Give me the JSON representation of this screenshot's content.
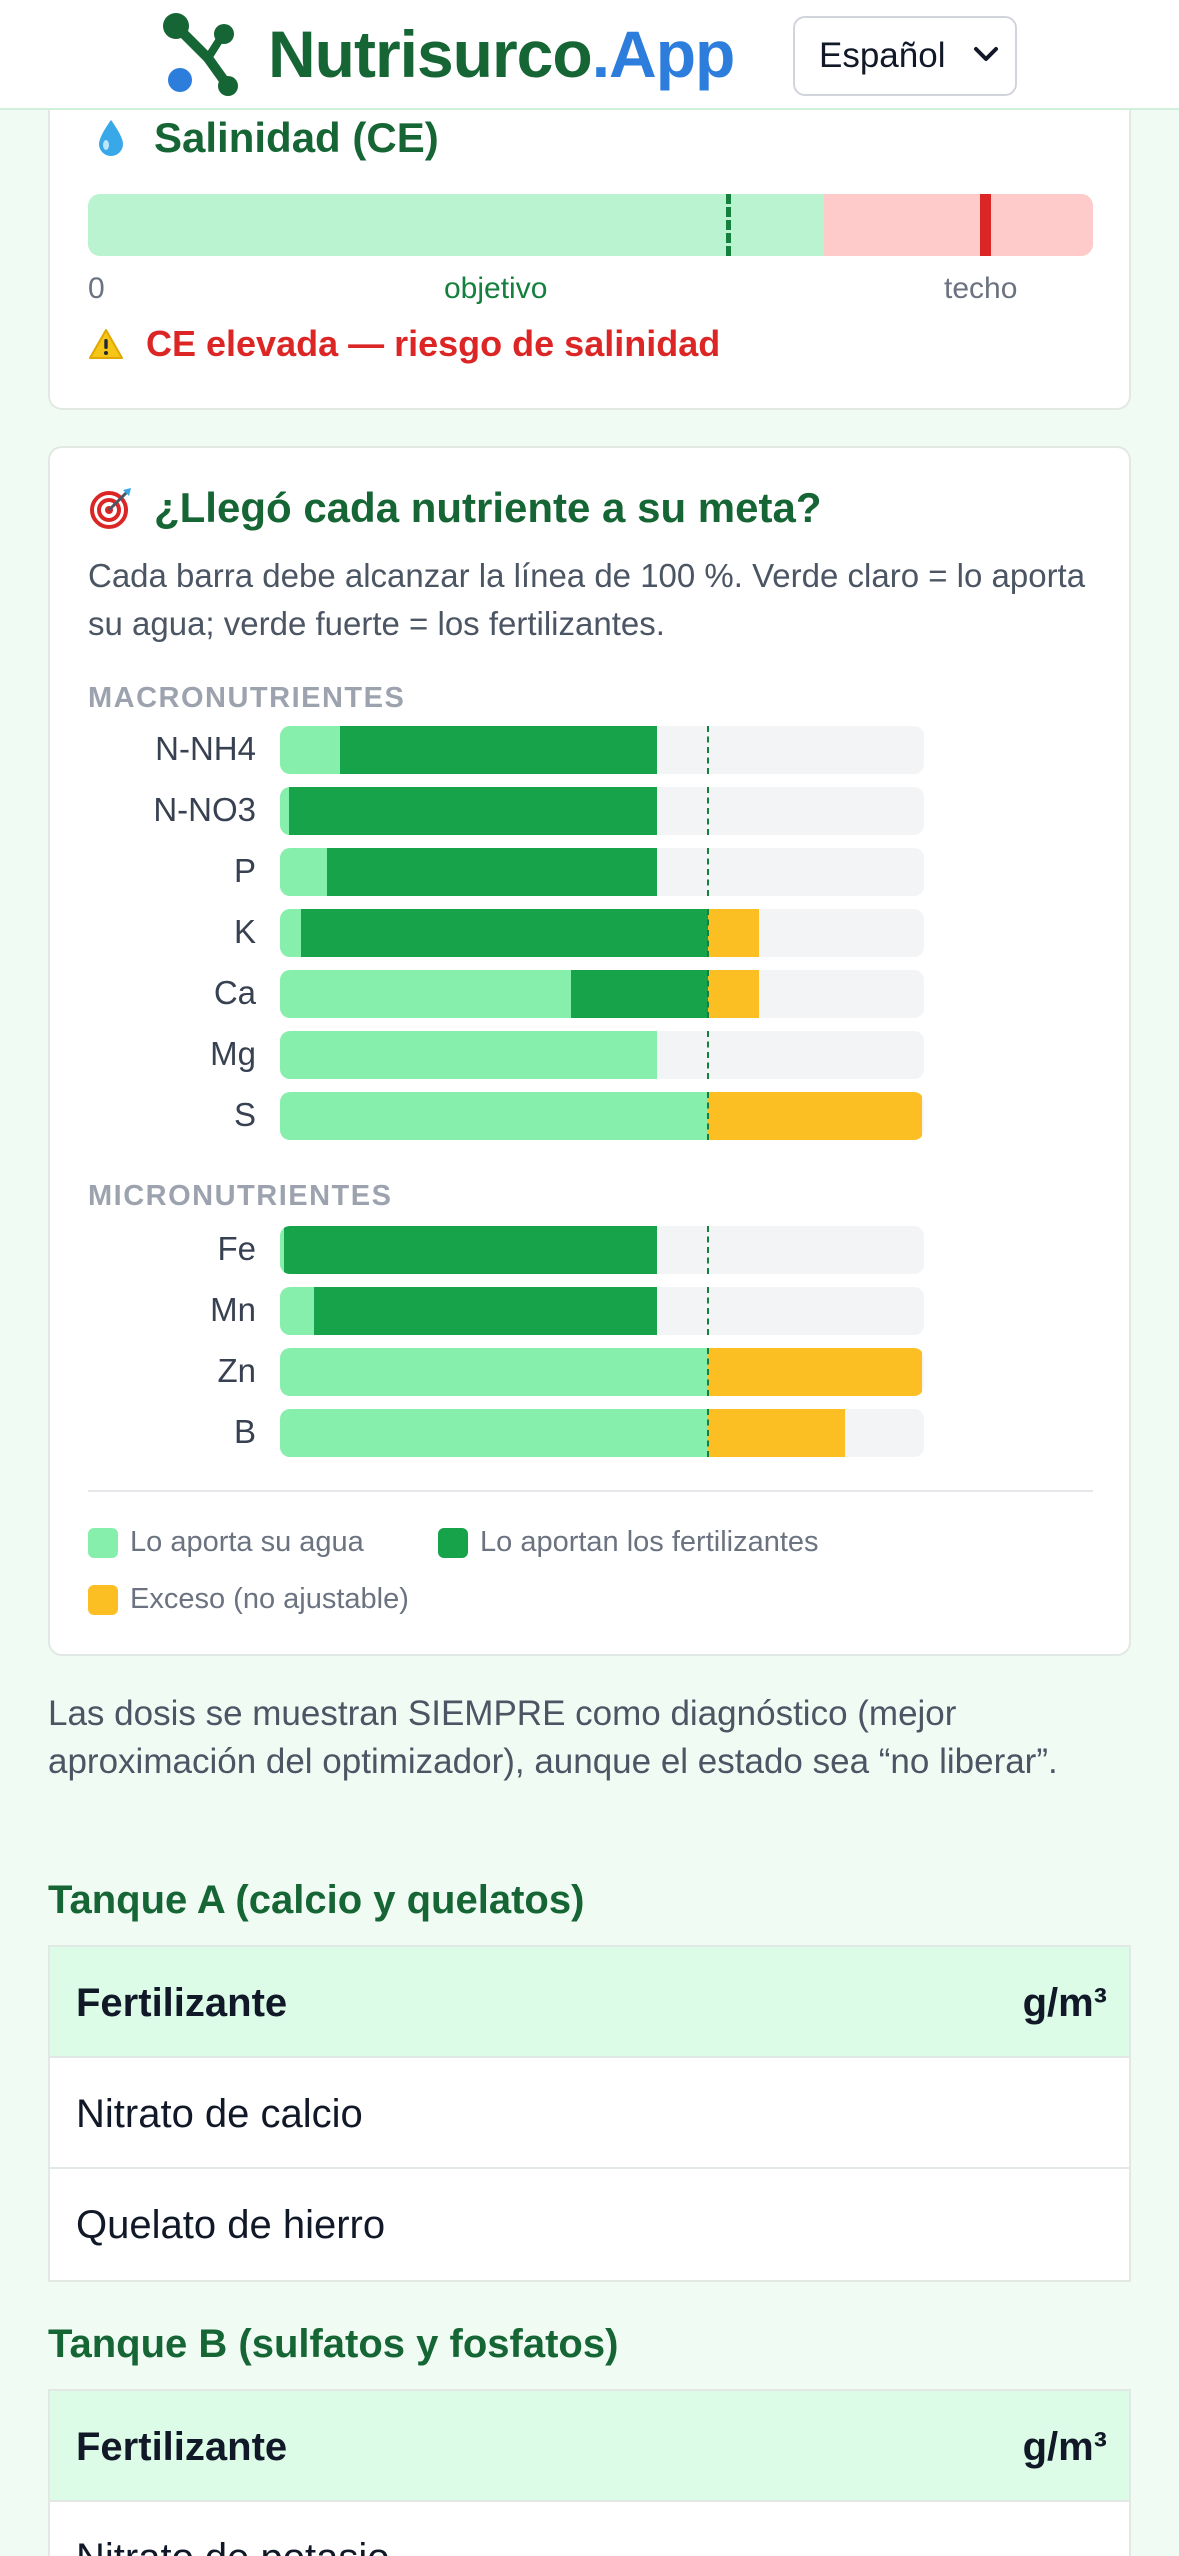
{
  "header": {
    "brand_part1": "Nutrisurco",
    "brand_part2": ".App",
    "language": "Español"
  },
  "salinity": {
    "title": "Salinidad (CE)",
    "label_zero": "0",
    "label_target": "objetivo",
    "label_ceiling": "techo",
    "warning": "CE elevada — riesgo de salinidad",
    "target_fraction": 0.637,
    "ceiling_start_fraction": 0.732,
    "current_value_fraction": 0.893
  },
  "goal": {
    "title": "¿Llegó cada nutriente a su meta?",
    "description": "Cada barra debe alcanzar la línea de 100 %. Verde claro = lo aporta su agua; verde fuerte = los fertilizantes.",
    "target_percent": 100,
    "macro_label": "MACRONUTRIENTES",
    "micro_label": "MICRONUTRIENTES",
    "macronutrients": [
      {
        "name": "N-NH4",
        "water_pct": 14,
        "fertilizer_pct": 74,
        "excess_pct": 0
      },
      {
        "name": "N-NO3",
        "water_pct": 2,
        "fertilizer_pct": 86,
        "excess_pct": 0
      },
      {
        "name": "P",
        "water_pct": 11,
        "fertilizer_pct": 77,
        "excess_pct": 0
      },
      {
        "name": "K",
        "water_pct": 5,
        "fertilizer_pct": 95,
        "excess_pct": 12
      },
      {
        "name": "Ca",
        "water_pct": 68,
        "fertilizer_pct": 32,
        "excess_pct": 12
      },
      {
        "name": "Mg",
        "water_pct": 88,
        "fertilizer_pct": 0,
        "excess_pct": 0
      },
      {
        "name": "S",
        "water_pct": 100,
        "fertilizer_pct": 0,
        "excess_pct": 50
      }
    ],
    "micronutrients": [
      {
        "name": "Fe",
        "water_pct": 1,
        "fertilizer_pct": 87,
        "excess_pct": 0
      },
      {
        "name": "Mn",
        "water_pct": 8,
        "fertilizer_pct": 80,
        "excess_pct": 0
      },
      {
        "name": "Zn",
        "water_pct": 100,
        "fertilizer_pct": 0,
        "excess_pct": 50
      },
      {
        "name": "B",
        "water_pct": 100,
        "fertilizer_pct": 0,
        "excess_pct": 32
      }
    ],
    "legend": {
      "water": "Lo aporta su agua",
      "fertilizer": "Lo aportan los fertilizantes",
      "excess": "Exceso (no ajustable)"
    },
    "colors": {
      "water": "#86efac",
      "fertilizer": "#16a34a",
      "excess": "#fbbf24",
      "track": "#f3f4f6"
    }
  },
  "note": "Las dosis se muestran SIEMPRE como diagnóstico (mejor aproximación del optimizador), aunque el estado sea “no liberar”.",
  "tank_a": {
    "title": "Tanque A (calcio y quelatos)",
    "col_fertilizer": "Fertilizante",
    "col_dose": "g/m³",
    "rows": [
      {
        "fertilizer": "Nitrato de calcio",
        "dose": ""
      },
      {
        "fertilizer": "Quelato de hierro",
        "dose": ""
      }
    ]
  },
  "tank_b": {
    "title": "Tanque B (sulfatos y fosfatos)",
    "col_fertilizer": "Fertilizante",
    "col_dose": "g/m³",
    "rows": [
      {
        "fertilizer": "Nitrato de potasio",
        "dose": ""
      }
    ]
  }
}
